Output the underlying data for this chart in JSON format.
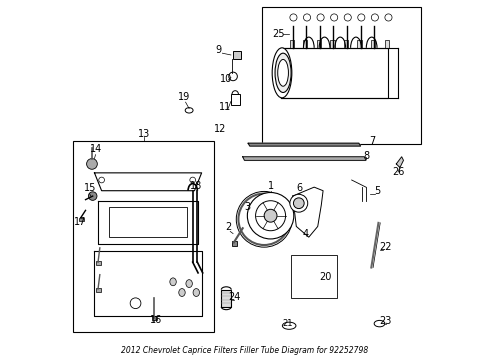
{
  "title": "2012 Chevrolet Caprice Filters Filler Tube Diagram for 92252798",
  "background_color": "#ffffff",
  "line_color": "#000000",
  "fig_width": 4.89,
  "fig_height": 3.6,
  "dpi": 100
}
